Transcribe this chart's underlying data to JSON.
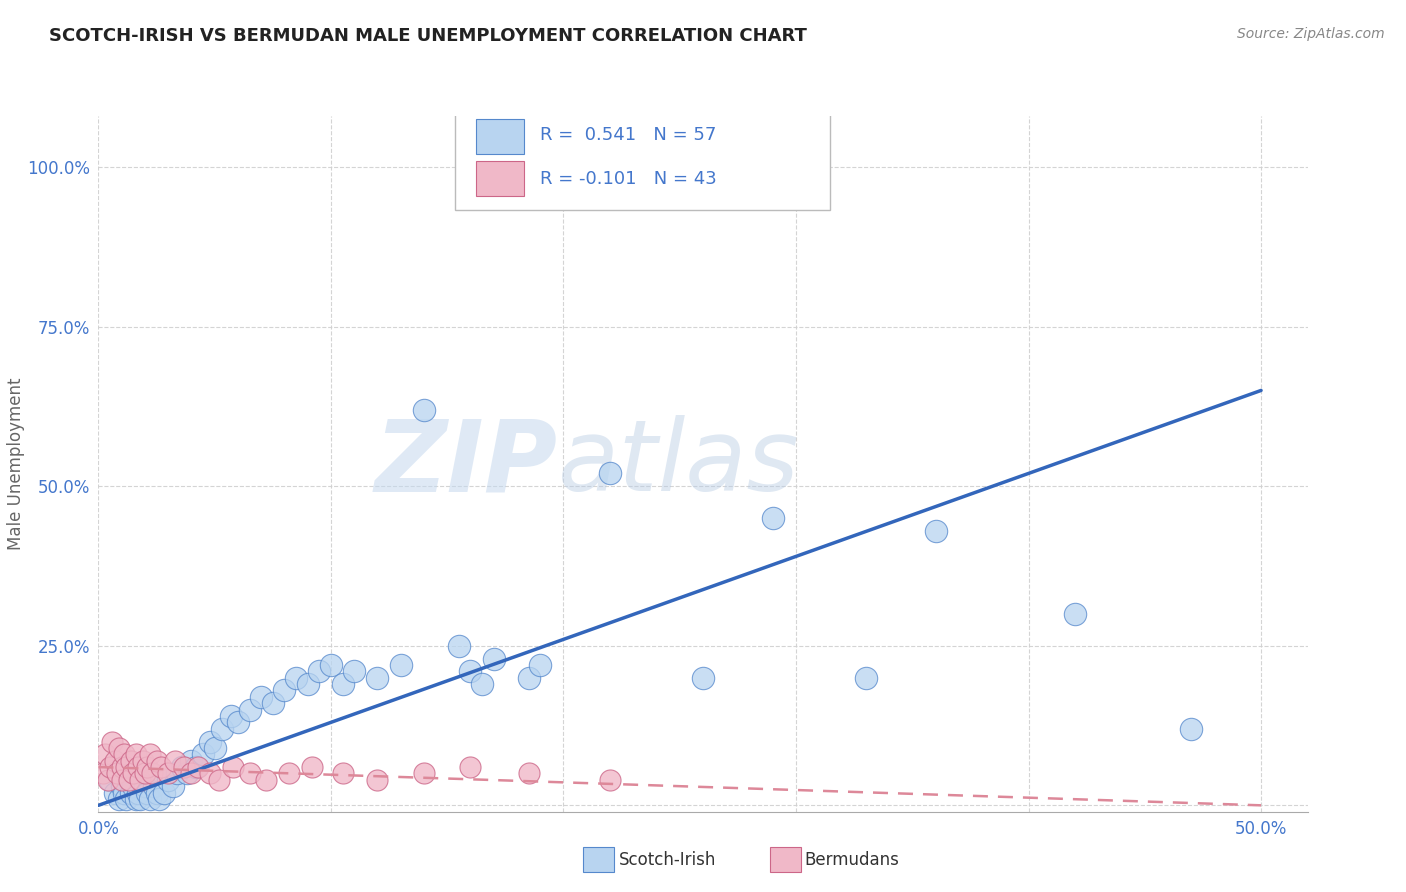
{
  "title": "SCOTCH-IRISH VS BERMUDAN MALE UNEMPLOYMENT CORRELATION CHART",
  "source": "Source: ZipAtlas.com",
  "ylabel": "Male Unemployment",
  "xlim": [
    0.0,
    0.52
  ],
  "ylim": [
    -0.01,
    1.08
  ],
  "xtick_vals": [
    0.0,
    0.1,
    0.2,
    0.3,
    0.4,
    0.5
  ],
  "xticklabels": [
    "0.0%",
    "",
    "",
    "",
    "",
    "50.0%"
  ],
  "ytick_vals": [
    0.0,
    0.25,
    0.5,
    0.75,
    1.0
  ],
  "yticklabels": [
    "",
    "25.0%",
    "50.0%",
    "75.0%",
    "100.0%"
  ],
  "grid_color": "#d0d0d0",
  "background_color": "#ffffff",
  "scotch_irish_color": "#b8d4f0",
  "scotch_irish_edge": "#5588cc",
  "bermudan_color": "#f0b8c8",
  "bermudan_edge": "#cc6688",
  "line_blue": "#3366bb",
  "line_pink": "#dd8899",
  "legend_R1": "0.541",
  "legend_N1": "57",
  "legend_R2": "-0.101",
  "legend_N2": "43",
  "watermark_zip": "ZIP",
  "watermark_atlas": "atlas",
  "tick_color": "#4477cc",
  "title_color": "#222222",
  "source_color": "#888888",
  "ylabel_color": "#666666",
  "scotch_irish_x": [
    0.005,
    0.007,
    0.009,
    0.01,
    0.011,
    0.012,
    0.014,
    0.015,
    0.016,
    0.017,
    0.018,
    0.02,
    0.021,
    0.022,
    0.024,
    0.025,
    0.026,
    0.028,
    0.03,
    0.032,
    0.034,
    0.036,
    0.038,
    0.04,
    0.042,
    0.045,
    0.048,
    0.05,
    0.053,
    0.057,
    0.06,
    0.065,
    0.07,
    0.075,
    0.08,
    0.085,
    0.09,
    0.095,
    0.1,
    0.105,
    0.11,
    0.12,
    0.13,
    0.14,
    0.155,
    0.16,
    0.165,
    0.17,
    0.185,
    0.19,
    0.22,
    0.26,
    0.29,
    0.33,
    0.36,
    0.42,
    0.47
  ],
  "scotch_irish_y": [
    0.04,
    0.02,
    0.01,
    0.03,
    0.02,
    0.01,
    0.02,
    0.03,
    0.01,
    0.02,
    0.01,
    0.03,
    0.02,
    0.01,
    0.03,
    0.02,
    0.01,
    0.02,
    0.04,
    0.03,
    0.05,
    0.06,
    0.05,
    0.07,
    0.06,
    0.08,
    0.1,
    0.09,
    0.12,
    0.14,
    0.13,
    0.15,
    0.17,
    0.16,
    0.18,
    0.2,
    0.19,
    0.21,
    0.22,
    0.19,
    0.21,
    0.2,
    0.22,
    0.62,
    0.25,
    0.21,
    0.19,
    0.23,
    0.2,
    0.22,
    0.52,
    0.2,
    0.45,
    0.2,
    0.43,
    0.3,
    0.12
  ],
  "bermudan_x": [
    0.002,
    0.003,
    0.004,
    0.005,
    0.006,
    0.007,
    0.008,
    0.009,
    0.01,
    0.01,
    0.011,
    0.012,
    0.013,
    0.014,
    0.015,
    0.016,
    0.017,
    0.018,
    0.019,
    0.02,
    0.021,
    0.022,
    0.023,
    0.025,
    0.027,
    0.03,
    0.033,
    0.037,
    0.04,
    0.043,
    0.048,
    0.052,
    0.058,
    0.065,
    0.072,
    0.082,
    0.092,
    0.105,
    0.12,
    0.14,
    0.16,
    0.185,
    0.22
  ],
  "bermudan_y": [
    0.05,
    0.08,
    0.04,
    0.06,
    0.1,
    0.07,
    0.05,
    0.09,
    0.06,
    0.04,
    0.08,
    0.06,
    0.04,
    0.07,
    0.05,
    0.08,
    0.06,
    0.04,
    0.07,
    0.05,
    0.06,
    0.08,
    0.05,
    0.07,
    0.06,
    0.05,
    0.07,
    0.06,
    0.05,
    0.06,
    0.05,
    0.04,
    0.06,
    0.05,
    0.04,
    0.05,
    0.06,
    0.05,
    0.04,
    0.05,
    0.06,
    0.05,
    0.04
  ],
  "blue_line_x": [
    0.0,
    0.5
  ],
  "blue_line_y": [
    0.0,
    0.65
  ],
  "pink_line_x": [
    0.0,
    0.5
  ],
  "pink_line_y": [
    0.06,
    0.0
  ]
}
